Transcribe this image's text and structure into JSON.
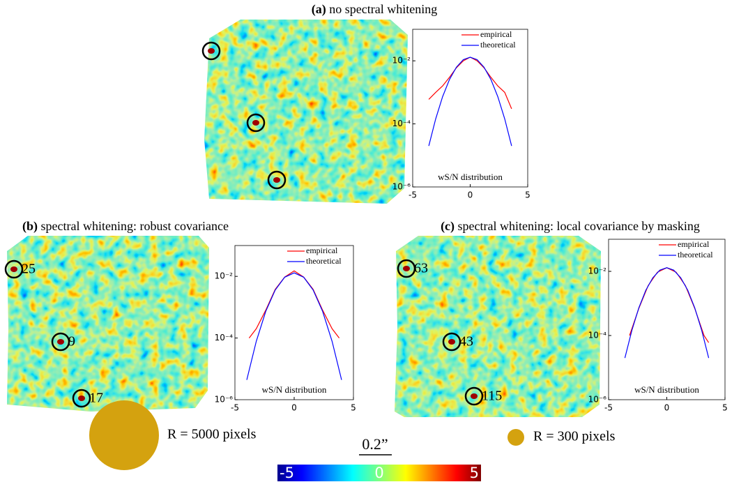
{
  "chart_data": [
    {
      "type": "line",
      "panel": "(a)",
      "title": "no spectral whitening",
      "annotation": "wS/N distribution",
      "xlim": [
        -5,
        5
      ],
      "xticks": [
        -5,
        0,
        5
      ],
      "ylim": [
        1e-06,
        0.1
      ],
      "log_y": true,
      "yticks": [
        {
          "value": 1e-06,
          "label": "10⁻⁶"
        },
        {
          "value": 0.0001,
          "label": "10⁻⁴"
        },
        {
          "value": 0.01,
          "label": "10⁻²"
        }
      ],
      "series": [
        {
          "name": "empirical",
          "color": "#ff0000",
          "x": [
            -3.6,
            -3,
            -2.4,
            -1.8,
            -1.2,
            -0.6,
            0,
            0.6,
            1.2,
            1.8,
            2.4,
            3,
            3.6
          ],
          "values": [
            0.0006,
            0.001,
            0.0016,
            0.003,
            0.006,
            0.01,
            0.013,
            0.01,
            0.006,
            0.003,
            0.0016,
            0.001,
            0.0003
          ]
        },
        {
          "name": "theoretical",
          "color": "#0000ff",
          "x": [
            -3.6,
            -3,
            -2.4,
            -1.8,
            -1.2,
            -0.6,
            0,
            0.6,
            1.2,
            1.8,
            2.4,
            3,
            3.6
          ],
          "values": [
            2e-05,
            0.000144,
            0.00073,
            0.00257,
            0.0063,
            0.0109,
            0.013,
            0.0109,
            0.0063,
            0.00257,
            0.00073,
            0.000144,
            2e-05
          ]
        }
      ]
    },
    {
      "type": "line",
      "panel": "(b)",
      "title": "spectral whitening: robust covariance",
      "annotation": "wS/N distribution",
      "image_labels": [
        "25",
        "9",
        "17"
      ],
      "kernel_label": "R = 5000 pixels",
      "xlim": [
        -5,
        5
      ],
      "xticks": [
        -5,
        0,
        5
      ],
      "ylim": [
        1e-06,
        0.1
      ],
      "log_y": true,
      "yticks": [
        {
          "value": 1e-06,
          "label": "10⁻⁶"
        },
        {
          "value": 0.0001,
          "label": "10⁻⁴"
        },
        {
          "value": 0.01,
          "label": "10⁻²"
        }
      ],
      "series": [
        {
          "name": "empirical",
          "color": "#ff0000",
          "x": [
            -3.8,
            -3.2,
            -2.4,
            -1.6,
            -0.8,
            0,
            0.8,
            1.6,
            2.4,
            3.2,
            3.8
          ],
          "values": [
            0.0001,
            0.0002,
            0.0008,
            0.0038,
            0.0095,
            0.015,
            0.0095,
            0.0038,
            0.0008,
            0.0002,
            0.0001
          ]
        },
        {
          "name": "theoretical",
          "color": "#0000ff",
          "x": [
            -4,
            -3.2,
            -2.4,
            -1.6,
            -0.8,
            0,
            0.8,
            1.6,
            2.4,
            3.2,
            4
          ],
          "values": [
            4.4e-06,
            7.8e-05,
            0.00073,
            0.0036,
            0.0094,
            0.013,
            0.0094,
            0.0036,
            0.00073,
            7.8e-05,
            4.4e-06
          ]
        }
      ]
    },
    {
      "type": "line",
      "panel": "(c)",
      "title": "spectral whitening: local covariance by masking",
      "annotation": "wS/N distribution",
      "image_labels": [
        "63",
        "43",
        "115"
      ],
      "kernel_label": "R = 300 pixels",
      "xlim": [
        -5,
        5
      ],
      "xticks": [
        -5,
        0,
        5
      ],
      "ylim": [
        1e-06,
        0.1
      ],
      "log_y": true,
      "yticks": [
        {
          "value": 1e-06,
          "label": "10⁻⁶"
        },
        {
          "value": 0.0001,
          "label": "10⁻⁴"
        },
        {
          "value": 0.01,
          "label": "10⁻²"
        }
      ],
      "series": [
        {
          "name": "empirical",
          "color": "#ff0000",
          "x": [
            -3.2,
            -2.4,
            -1.6,
            -0.8,
            0,
            0.8,
            1.6,
            2.4,
            3.2,
            3.6
          ],
          "values": [
            0.0001,
            0.0007,
            0.0036,
            0.0094,
            0.013,
            0.0094,
            0.0036,
            0.0007,
            0.0001,
            6e-05
          ]
        },
        {
          "name": "theoretical",
          "color": "#0000ff",
          "x": [
            -3.6,
            -3,
            -2.4,
            -1.8,
            -1.2,
            -0.6,
            0,
            0.6,
            1.2,
            1.8,
            2.4,
            3,
            3.6
          ],
          "values": [
            2e-05,
            0.000144,
            0.00073,
            0.00257,
            0.0063,
            0.0109,
            0.013,
            0.0109,
            0.0063,
            0.00257,
            0.00073,
            0.000144,
            2e-05
          ]
        }
      ]
    }
  ],
  "figure": {
    "scale_bar": "0.2”",
    "colorbar": {
      "lim": [
        -5,
        5
      ],
      "ticks": [
        -5,
        0,
        5
      ]
    }
  }
}
